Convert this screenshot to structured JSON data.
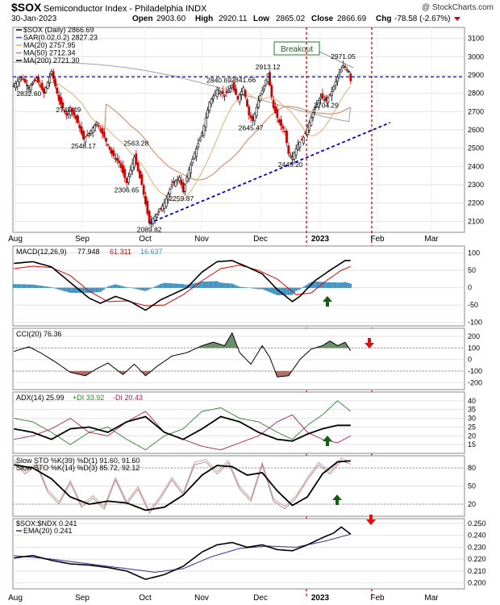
{
  "header": {
    "symbol": "$SOX",
    "name": "Semiconductor Index - Philadelphia  INDX",
    "watermark": "@ StockCharts.com",
    "date": "30-Jan-2023",
    "open_label": "Open",
    "open": "2903.60",
    "high_label": "High",
    "high": "2920.11",
    "low_label": "Low",
    "low": "2865.02",
    "close_label": "Close",
    "close": "2866.69",
    "chg_label": "Chg",
    "chg": "-78.58 (-2.67%)"
  },
  "colors": {
    "up": "#000000",
    "down": "#cc0000",
    "ma20": "#e0b070",
    "ma50": "#d08060",
    "ma200": "#a0a0a0",
    "sar": "#4466aa",
    "macd": "#000000",
    "signal": "#dd0000",
    "histogram": "#3b8fc0",
    "trend": "#0000cc",
    "cursor": "#cc0000",
    "cci_up": "#6b8f6b",
    "cci_down": "#b06f6f",
    "plus_di": "#2f7d2f",
    "minus_di": "#aa2255",
    "sto_slow": "#000000",
    "sto_fast": "#c49a9a",
    "ratio_ema": "#3030a0",
    "arrow_up": "#106010",
    "arrow_down": "#dd1111"
  },
  "x_labels": [
    "Aug",
    "Sep",
    "Oct",
    "Nov",
    "Dec",
    "2023",
    "Feb",
    "Mar"
  ],
  "price_panel": {
    "legend": [
      "$SOX (Daily) 2866.69",
      "SAR(0.02,0.2) 2827.23",
      "MA(20) 2757.95",
      "MA(50) 2712.34",
      "MA(200) 2721.30"
    ],
    "ticks": [
      2100,
      2200,
      2300,
      2400,
      2500,
      2600,
      2700,
      2800,
      2900,
      3000,
      3100
    ],
    "ylim": [
      2040,
      3160
    ],
    "annotations": [
      {
        "text": "2832.60",
        "x": 8,
        "v": 2832.6
      },
      {
        "text": "2745.49",
        "x": 29,
        "v": 2745.49
      },
      {
        "text": "2548.17",
        "x": 37,
        "v": 2548.17
      },
      {
        "text": "2563.28",
        "x": 65,
        "v": 2563.28
      },
      {
        "text": "2306.65",
        "x": 60,
        "v": 2306.65
      },
      {
        "text": "2089.82",
        "x": 72,
        "v": 2089.82
      },
      {
        "text": "2259.87",
        "x": 89,
        "v": 2259.87
      },
      {
        "text": "2840.69",
        "x": 109,
        "v": 2840.69
      },
      {
        "text": "2841.66",
        "x": 122,
        "v": 2841.66
      },
      {
        "text": "2913.12",
        "x": 135,
        "v": 2913.12
      },
      {
        "text": "2645.47",
        "x": 126,
        "v": 2645.47
      },
      {
        "text": "2445.20",
        "x": 147,
        "v": 2445.2
      },
      {
        "text": "2704.29",
        "x": 166,
        "v": 2704.29
      },
      {
        "text": "2971.05",
        "x": 175,
        "v": 2971.05
      }
    ],
    "breakout_label": "Breakout",
    "breakout_level": 2890,
    "trendline": [
      {
        "x": 72,
        "v": 2090
      },
      {
        "x": 200,
        "v": 2640
      }
    ]
  },
  "macd_panel": {
    "legend": [
      "MACD(12,26,9)",
      "77.948",
      "61.311",
      "16.637"
    ],
    "ticks": [
      -100,
      -50,
      0,
      50,
      100
    ],
    "ylim": [
      -110,
      120
    ]
  },
  "cci_panel": {
    "legend": "CCI(20) 76.36",
    "ticks": [
      -200,
      -100,
      0,
      100,
      200
    ],
    "ylim": [
      -260,
      270
    ]
  },
  "adx_panel": {
    "legend": [
      "ADX(14) 25.99",
      "+DI 33.92",
      "-DI 20.43"
    ],
    "ticks": [
      15,
      20,
      25,
      30,
      35,
      40
    ],
    "ylim": [
      10,
      45
    ]
  },
  "sto_panel": {
    "legend": [
      "Slow STO %K(39) %D(1) 91.60, 91.60",
      "Slow STO %K(14) %D(3) 85.72, 92.12"
    ],
    "ticks": [
      20,
      50,
      80
    ],
    "ylim": [
      0,
      100
    ]
  },
  "ratio_panel": {
    "legend": [
      "$SOX:$NDX 0.241",
      "EMA(20) 0.241"
    ],
    "ticks": [
      0.2,
      0.21,
      0.22,
      0.23,
      0.24,
      0.25
    ],
    "ylim": [
      0.195,
      0.254
    ]
  },
  "chart_data": {
    "type": "candlestick",
    "title": "$SOX Semiconductor Index - Philadelphia INDX",
    "xlabel": "",
    "ylabel": "",
    "categories": [
      "Aug",
      "Sep",
      "Oct",
      "Nov",
      "Dec",
      "2023",
      "Feb",
      "Mar"
    ],
    "price_anchors": [
      [
        0,
        2840
      ],
      [
        4,
        2890
      ],
      [
        8,
        2830
      ],
      [
        12,
        2880
      ],
      [
        16,
        2800
      ],
      [
        20,
        2920
      ],
      [
        24,
        2760
      ],
      [
        28,
        2680
      ],
      [
        30,
        2720
      ],
      [
        34,
        2640
      ],
      [
        37,
        2550
      ],
      [
        40,
        2580
      ],
      [
        44,
        2640
      ],
      [
        48,
        2560
      ],
      [
        52,
        2470
      ],
      [
        56,
        2420
      ],
      [
        60,
        2310
      ],
      [
        64,
        2450
      ],
      [
        68,
        2300
      ],
      [
        72,
        2090
      ],
      [
        76,
        2140
      ],
      [
        80,
        2200
      ],
      [
        84,
        2300
      ],
      [
        88,
        2340
      ],
      [
        90,
        2260
      ],
      [
        93,
        2380
      ],
      [
        96,
        2470
      ],
      [
        100,
        2580
      ],
      [
        104,
        2750
      ],
      [
        108,
        2820
      ],
      [
        112,
        2790
      ],
      [
        116,
        2840
      ],
      [
        119,
        2770
      ],
      [
        122,
        2830
      ],
      [
        125,
        2680
      ],
      [
        127,
        2650
      ],
      [
        130,
        2760
      ],
      [
        133,
        2840
      ],
      [
        135,
        2905
      ],
      [
        138,
        2720
      ],
      [
        141,
        2640
      ],
      [
        144,
        2590
      ],
      [
        146,
        2470
      ],
      [
        148,
        2450
      ],
      [
        151,
        2520
      ],
      [
        154,
        2560
      ],
      [
        157,
        2640
      ],
      [
        160,
        2720
      ],
      [
        163,
        2780
      ],
      [
        166,
        2760
      ],
      [
        169,
        2810
      ],
      [
        172,
        2890
      ],
      [
        175,
        2950
      ],
      [
        178,
        2920
      ],
      [
        179,
        2867
      ]
    ],
    "macd_anchors": [
      [
        0,
        70
      ],
      [
        10,
        75
      ],
      [
        20,
        60
      ],
      [
        30,
        15
      ],
      [
        40,
        -30
      ],
      [
        46,
        -45
      ],
      [
        54,
        -25
      ],
      [
        62,
        -40
      ],
      [
        70,
        -65
      ],
      [
        78,
        -35
      ],
      [
        86,
        -15
      ],
      [
        92,
        0
      ],
      [
        100,
        45
      ],
      [
        108,
        75
      ],
      [
        116,
        78
      ],
      [
        124,
        60
      ],
      [
        132,
        40
      ],
      [
        140,
        -5
      ],
      [
        148,
        -40
      ],
      [
        152,
        -25
      ],
      [
        160,
        20
      ],
      [
        168,
        50
      ],
      [
        176,
        78
      ],
      [
        179,
        78
      ]
    ],
    "signal_anchors": [
      [
        0,
        55
      ],
      [
        10,
        62
      ],
      [
        20,
        58
      ],
      [
        30,
        35
      ],
      [
        40,
        -10
      ],
      [
        50,
        -40
      ],
      [
        60,
        -38
      ],
      [
        70,
        -52
      ],
      [
        80,
        -50
      ],
      [
        90,
        -20
      ],
      [
        100,
        20
      ],
      [
        110,
        55
      ],
      [
        120,
        65
      ],
      [
        130,
        50
      ],
      [
        140,
        25
      ],
      [
        150,
        -20
      ],
      [
        158,
        -15
      ],
      [
        166,
        20
      ],
      [
        174,
        50
      ],
      [
        179,
        61
      ]
    ],
    "cci_anchors": [
      [
        0,
        70
      ],
      [
        8,
        110
      ],
      [
        14,
        60
      ],
      [
        22,
        -20
      ],
      [
        30,
        -110
      ],
      [
        38,
        -140
      ],
      [
        44,
        -80
      ],
      [
        50,
        -30
      ],
      [
        58,
        -130
      ],
      [
        64,
        -40
      ],
      [
        70,
        -140
      ],
      [
        76,
        -60
      ],
      [
        84,
        30
      ],
      [
        92,
        60
      ],
      [
        100,
        120
      ],
      [
        106,
        150
      ],
      [
        112,
        120
      ],
      [
        116,
        230
      ],
      [
        120,
        60
      ],
      [
        126,
        -40
      ],
      [
        132,
        120
      ],
      [
        136,
        20
      ],
      [
        140,
        -150
      ],
      [
        146,
        -140
      ],
      [
        152,
        0
      ],
      [
        158,
        90
      ],
      [
        164,
        120
      ],
      [
        168,
        160
      ],
      [
        172,
        120
      ],
      [
        176,
        150
      ],
      [
        179,
        76
      ]
    ],
    "adx_anchors": [
      [
        0,
        24
      ],
      [
        10,
        22
      ],
      [
        20,
        18
      ],
      [
        30,
        24
      ],
      [
        40,
        25
      ],
      [
        50,
        22
      ],
      [
        60,
        28
      ],
      [
        70,
        31
      ],
      [
        80,
        22
      ],
      [
        90,
        18
      ],
      [
        100,
        24
      ],
      [
        110,
        31
      ],
      [
        120,
        28
      ],
      [
        130,
        22
      ],
      [
        140,
        18
      ],
      [
        148,
        17
      ],
      [
        156,
        21
      ],
      [
        164,
        24
      ],
      [
        172,
        26
      ],
      [
        179,
        26
      ]
    ],
    "plus_di_anchors": [
      [
        0,
        30
      ],
      [
        10,
        28
      ],
      [
        20,
        22
      ],
      [
        30,
        15
      ],
      [
        40,
        22
      ],
      [
        50,
        25
      ],
      [
        60,
        18
      ],
      [
        70,
        12
      ],
      [
        80,
        20
      ],
      [
        90,
        24
      ],
      [
        100,
        34
      ],
      [
        110,
        36
      ],
      [
        120,
        30
      ],
      [
        130,
        28
      ],
      [
        140,
        22
      ],
      [
        148,
        18
      ],
      [
        156,
        26
      ],
      [
        164,
        32
      ],
      [
        172,
        40
      ],
      [
        179,
        34
      ]
    ],
    "minus_di_anchors": [
      [
        0,
        18
      ],
      [
        10,
        20
      ],
      [
        20,
        24
      ],
      [
        30,
        30
      ],
      [
        40,
        22
      ],
      [
        50,
        20
      ],
      [
        60,
        28
      ],
      [
        70,
        34
      ],
      [
        80,
        22
      ],
      [
        90,
        18
      ],
      [
        100,
        14
      ],
      [
        110,
        12
      ],
      [
        120,
        16
      ],
      [
        130,
        20
      ],
      [
        140,
        28
      ],
      [
        148,
        32
      ],
      [
        156,
        22
      ],
      [
        164,
        18
      ],
      [
        172,
        16
      ],
      [
        179,
        20
      ]
    ],
    "sto39_anchors": [
      [
        0,
        85
      ],
      [
        10,
        80
      ],
      [
        20,
        62
      ],
      [
        30,
        32
      ],
      [
        40,
        20
      ],
      [
        50,
        25
      ],
      [
        60,
        22
      ],
      [
        70,
        10
      ],
      [
        80,
        15
      ],
      [
        90,
        35
      ],
      [
        100,
        68
      ],
      [
        108,
        84
      ],
      [
        116,
        82
      ],
      [
        124,
        68
      ],
      [
        132,
        72
      ],
      [
        140,
        42
      ],
      [
        148,
        18
      ],
      [
        156,
        32
      ],
      [
        164,
        70
      ],
      [
        172,
        90
      ],
      [
        179,
        91.6
      ]
    ],
    "sto14_anchors": [
      [
        0,
        90
      ],
      [
        6,
        70
      ],
      [
        12,
        85
      ],
      [
        18,
        40
      ],
      [
        24,
        20
      ],
      [
        30,
        55
      ],
      [
        36,
        15
      ],
      [
        42,
        30
      ],
      [
        48,
        12
      ],
      [
        54,
        60
      ],
      [
        60,
        20
      ],
      [
        66,
        45
      ],
      [
        72,
        5
      ],
      [
        78,
        30
      ],
      [
        84,
        60
      ],
      [
        90,
        35
      ],
      [
        96,
        85
      ],
      [
        102,
        90
      ],
      [
        108,
        70
      ],
      [
        114,
        88
      ],
      [
        120,
        45
      ],
      [
        126,
        25
      ],
      [
        132,
        85
      ],
      [
        138,
        25
      ],
      [
        144,
        12
      ],
      [
        150,
        30
      ],
      [
        156,
        60
      ],
      [
        162,
        85
      ],
      [
        168,
        70
      ],
      [
        174,
        92
      ],
      [
        179,
        86
      ]
    ],
    "ratio_anchors": [
      [
        0,
        0.221
      ],
      [
        10,
        0.223
      ],
      [
        20,
        0.219
      ],
      [
        30,
        0.216
      ],
      [
        40,
        0.215
      ],
      [
        50,
        0.213
      ],
      [
        60,
        0.21
      ],
      [
        70,
        0.203
      ],
      [
        80,
        0.207
      ],
      [
        90,
        0.214
      ],
      [
        100,
        0.226
      ],
      [
        108,
        0.232
      ],
      [
        116,
        0.234
      ],
      [
        124,
        0.23
      ],
      [
        132,
        0.232
      ],
      [
        140,
        0.228
      ],
      [
        148,
        0.227
      ],
      [
        156,
        0.232
      ],
      [
        164,
        0.238
      ],
      [
        170,
        0.242
      ],
      [
        174,
        0.247
      ],
      [
        179,
        0.241
      ]
    ],
    "ratio_ema_anchors": [
      [
        0,
        0.223
      ],
      [
        20,
        0.22
      ],
      [
        40,
        0.216
      ],
      [
        60,
        0.212
      ],
      [
        75,
        0.209
      ],
      [
        90,
        0.212
      ],
      [
        105,
        0.222
      ],
      [
        120,
        0.229
      ],
      [
        135,
        0.231
      ],
      [
        150,
        0.23
      ],
      [
        165,
        0.235
      ],
      [
        179,
        0.241
      ]
    ]
  }
}
